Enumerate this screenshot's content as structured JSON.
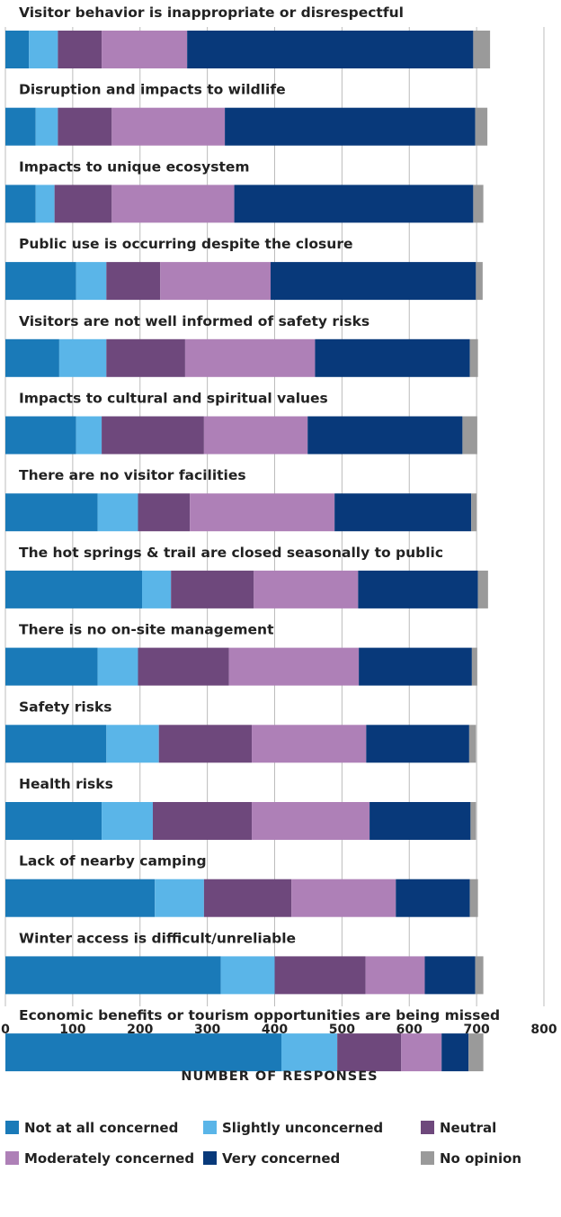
{
  "chart_data": {
    "type": "bar",
    "orientation": "horizontal",
    "stacked": true,
    "categories": [
      "Visitor behavior is inappropriate or disrespectful",
      "Disruption and impacts to wildlife",
      "Impacts to unique ecosystem",
      "Public use is occurring despite the closure",
      "Visitors are not well informed of safety risks",
      "Impacts to cultural and spiritual values",
      "There are no visitor facilities",
      "The hot springs & trail are closed seasonally to public",
      "There is no on-site management",
      "Safety risks",
      "Health risks",
      "Lack of nearby camping",
      "Winter access is difficult/unreliable",
      "Economic benefits or tourism opportunities are being missed"
    ],
    "series": [
      {
        "name": "Not at all concerned",
        "color": "#1a7ab8",
        "values": [
          35,
          45,
          45,
          105,
          80,
          105,
          137,
          203,
          137,
          150,
          143,
          222,
          320,
          410
        ]
      },
      {
        "name": "Slightly unconcerned",
        "color": "#5ab5e8",
        "values": [
          43,
          33,
          28,
          45,
          70,
          38,
          60,
          43,
          60,
          78,
          76,
          73,
          80,
          83
        ]
      },
      {
        "name": "Neutral",
        "color": "#6e487c",
        "values": [
          65,
          80,
          85,
          80,
          117,
          152,
          77,
          123,
          135,
          138,
          147,
          130,
          135,
          95
        ]
      },
      {
        "name": "Moderately concerned",
        "color": "#ae80b7",
        "values": [
          127,
          168,
          182,
          164,
          193,
          154,
          215,
          155,
          193,
          170,
          175,
          155,
          88,
          60
        ]
      },
      {
        "name": "Very concerned",
        "color": "#08397a",
        "values": [
          425,
          372,
          355,
          305,
          230,
          230,
          203,
          178,
          168,
          153,
          150,
          110,
          75,
          40
        ]
      },
      {
        "name": "No opinion",
        "color": "#9a9a9a",
        "values": [
          25,
          18,
          15,
          10,
          12,
          22,
          8,
          15,
          8,
          10,
          8,
          12,
          12,
          22
        ]
      }
    ],
    "xlim": [
      0,
      800
    ],
    "xticks": [
      0,
      100,
      200,
      300,
      400,
      500,
      600,
      700,
      800
    ],
    "xlabel": "NUMBER OF RESPONSES",
    "grid": true,
    "legend_position": "bottom"
  }
}
